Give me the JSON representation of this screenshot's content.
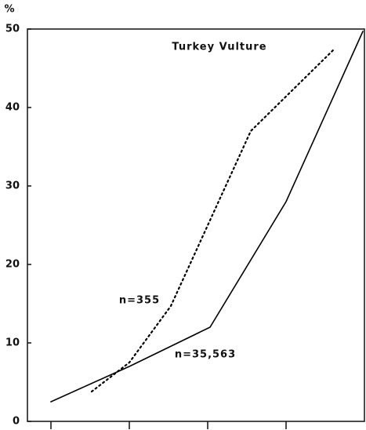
{
  "chart_data": {
    "type": "line",
    "title": "Turkey Vulture",
    "y_label": "%",
    "annotations": [
      "n=355",
      "n=35,563"
    ],
    "series": [
      {
        "color": "#000000",
        "line_style": "solid",
        "x": [
          1,
          2,
          3.03,
          4,
          4.98
        ],
        "values": [
          2.5,
          7,
          12,
          28,
          49.7
        ]
      },
      {
        "color": "#000000",
        "line_style": "dotted",
        "x": [
          1.52,
          2,
          2.53,
          3.55,
          4.6
        ],
        "values": [
          3.8,
          7.5,
          14.7,
          37,
          47.3
        ]
      }
    ],
    "xlim": [
      0.7,
      5
    ],
    "xticks": [
      1,
      2,
      3,
      4
    ],
    "ylim": [
      0,
      50
    ],
    "yticks": [
      0,
      10,
      20,
      30,
      40,
      50
    ],
    "grid": false
  }
}
